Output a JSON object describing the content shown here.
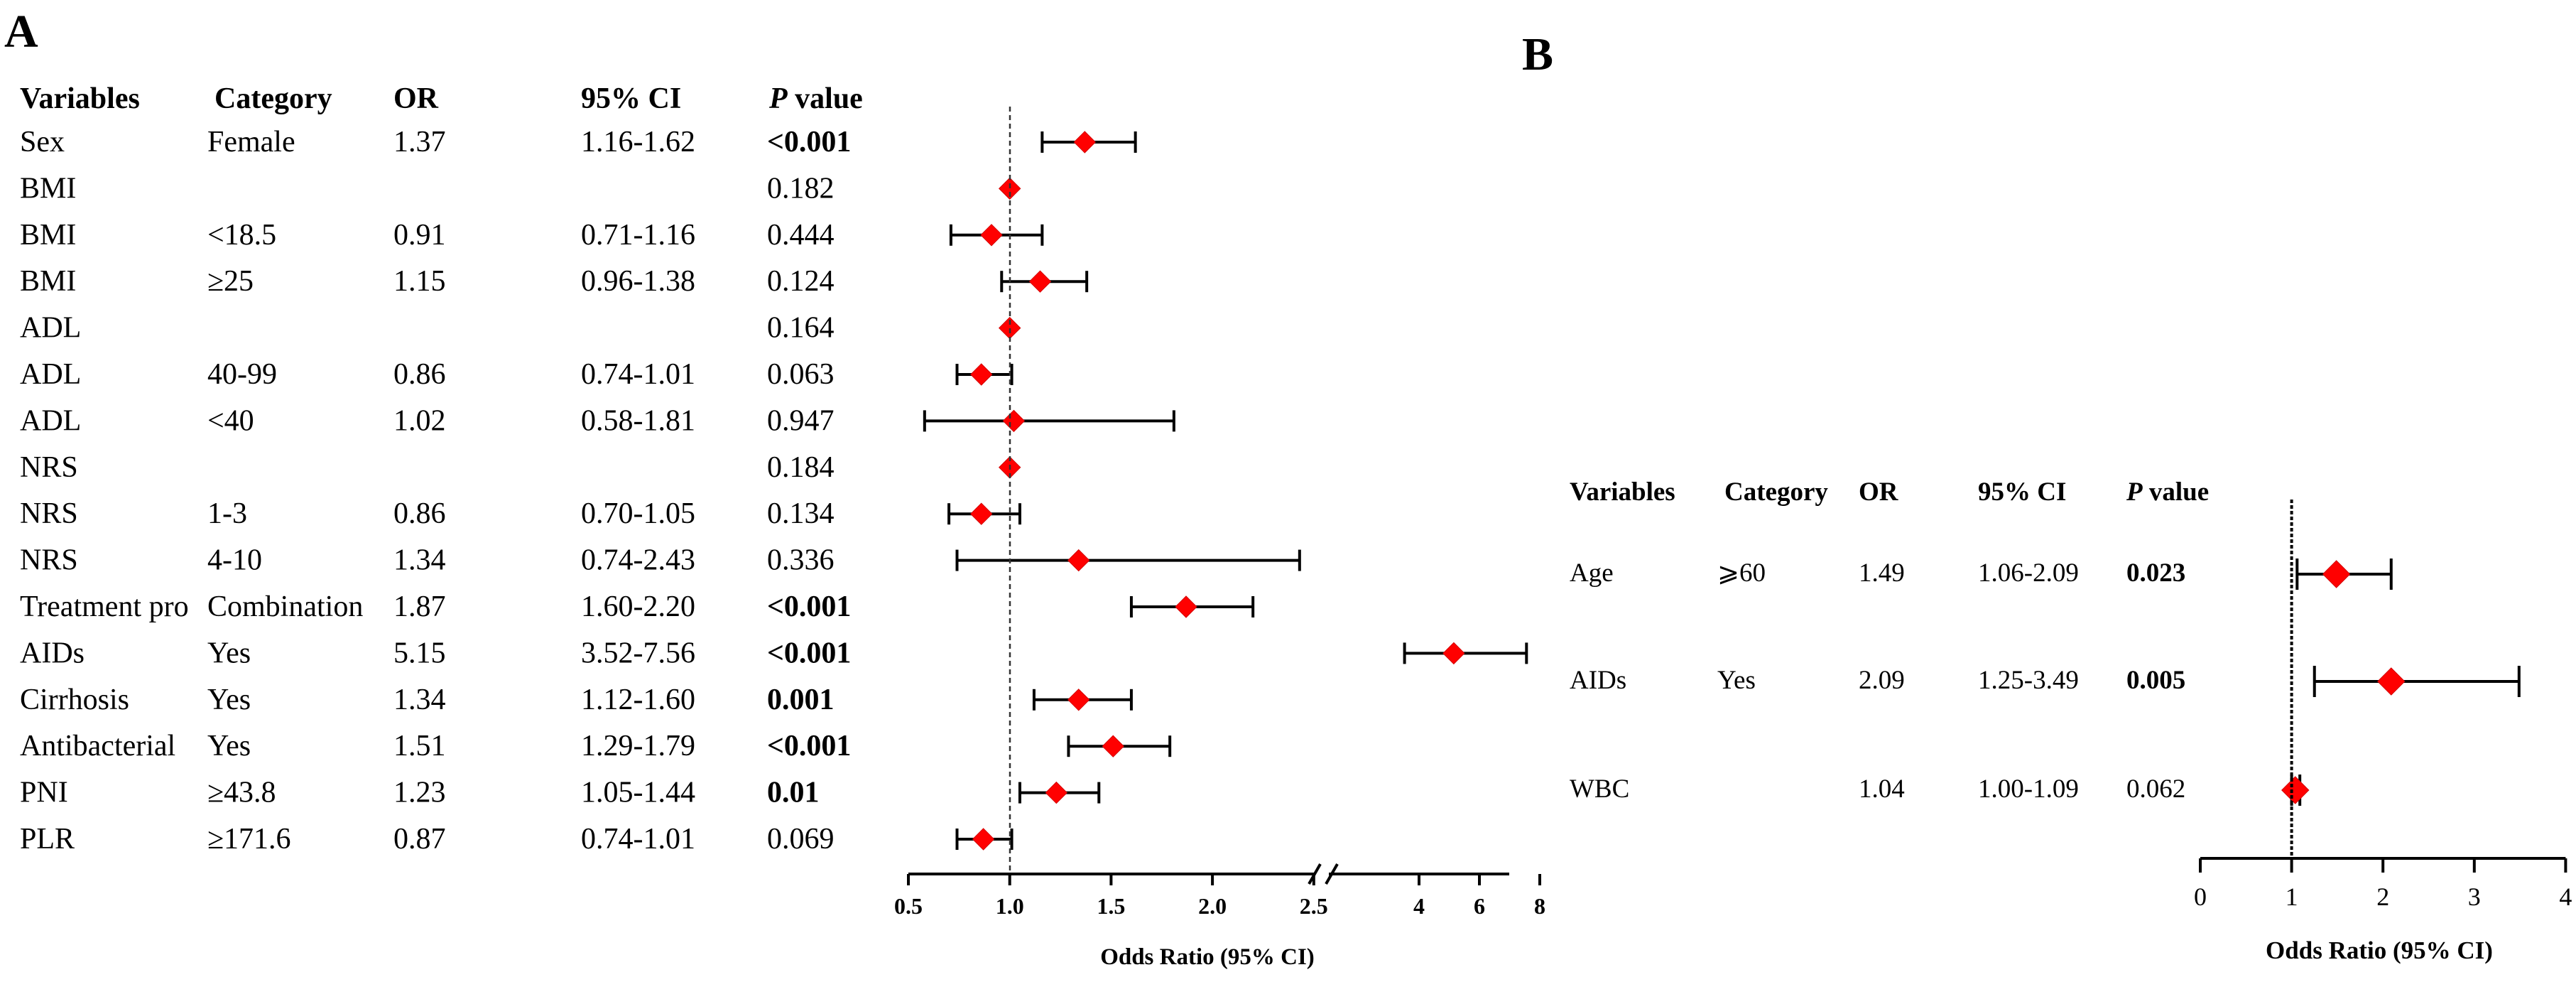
{
  "chart_data": [
    {
      "panel": "A",
      "type": "forest",
      "xlabel": "Odds Ratio (95% CI)",
      "reference": 1.0,
      "axis_break": [
        2.5,
        3.5
      ],
      "ticks_low": [
        "0.5",
        "1.0",
        "1.5",
        "2.0",
        "2.5"
      ],
      "ticks_high": [
        "4",
        "6",
        "8"
      ],
      "headers": {
        "variables": "Variables",
        "category": "Category",
        "or": "OR",
        "ci": "95% CI",
        "p_italic": "P",
        "p_rest": " value"
      },
      "rows": [
        {
          "variable": "Sex",
          "category": "Female",
          "or": "1.37",
          "ci": "1.16-1.62",
          "p": "<0.001",
          "bold": true,
          "est": 1.37,
          "lo": 1.16,
          "hi": 1.62
        },
        {
          "variable": "BMI",
          "category": "",
          "or": "",
          "ci": "",
          "p": "0.182",
          "bold": false,
          "est": 1.0,
          "lo": null,
          "hi": null
        },
        {
          "variable": "BMI",
          "category": "<18.5",
          "or": "0.91",
          "ci": "0.71-1.16",
          "p": "0.444",
          "bold": false,
          "est": 0.91,
          "lo": 0.71,
          "hi": 1.16
        },
        {
          "variable": "BMI",
          "category": "≥25",
          "or": "1.15",
          "ci": "0.96-1.38",
          "p": "0.124",
          "bold": false,
          "est": 1.15,
          "lo": 0.96,
          "hi": 1.38
        },
        {
          "variable": "ADL",
          "category": "",
          "or": "",
          "ci": "",
          "p": "0.164",
          "bold": false,
          "est": 1.0,
          "lo": null,
          "hi": null
        },
        {
          "variable": "ADL",
          "category": "40-99",
          "or": "0.86",
          "ci": "0.74-1.01",
          "p": "0.063",
          "bold": false,
          "est": 0.86,
          "lo": 0.74,
          "hi": 1.01
        },
        {
          "variable": "ADL",
          "category": "<40",
          "or": "1.02",
          "ci": "0.58-1.81",
          "p": "0.947",
          "bold": false,
          "est": 1.02,
          "lo": 0.58,
          "hi": 1.81
        },
        {
          "variable": "NRS",
          "category": "",
          "or": "",
          "ci": "",
          "p": "0.184",
          "bold": false,
          "est": 1.0,
          "lo": null,
          "hi": null
        },
        {
          "variable": "NRS",
          "category": "1-3",
          "or": "0.86",
          "ci": "0.70-1.05",
          "p": "0.134",
          "bold": false,
          "est": 0.86,
          "lo": 0.7,
          "hi": 1.05
        },
        {
          "variable": "NRS",
          "category": "4-10",
          "or": "1.34",
          "ci": "0.74-2.43",
          "p": "0.336",
          "bold": false,
          "est": 1.34,
          "lo": 0.74,
          "hi": 2.43
        },
        {
          "variable": "Treatment pro",
          "category": "Combination",
          "or": "1.87",
          "ci": "1.60-2.20",
          "p": "<0.001",
          "bold": true,
          "est": 1.87,
          "lo": 1.6,
          "hi": 2.2
        },
        {
          "variable": "AIDs",
          "category": "Yes",
          "or": "5.15",
          "ci": "3.52-7.56",
          "p": "<0.001",
          "bold": true,
          "est": 5.15,
          "lo": 3.52,
          "hi": 7.56
        },
        {
          "variable": "Cirrhosis",
          "category": "Yes",
          "or": "1.34",
          "ci": "1.12-1.60",
          "p": "0.001",
          "bold": true,
          "est": 1.34,
          "lo": 1.12,
          "hi": 1.6
        },
        {
          "variable": "Antibacterial",
          "category": "Yes",
          "or": "1.51",
          "ci": "1.29-1.79",
          "p": "<0.001",
          "bold": true,
          "est": 1.51,
          "lo": 1.29,
          "hi": 1.79
        },
        {
          "variable": "PNI",
          "category": "≥43.8",
          "or": "1.23",
          "ci": "1.05-1.44",
          "p": "0.01",
          "bold": true,
          "est": 1.23,
          "lo": 1.05,
          "hi": 1.44
        },
        {
          "variable": "PLR",
          "category": "≥171.6",
          "or": "0.87",
          "ci": "0.74-1.01",
          "p": "0.069",
          "bold": false,
          "est": 0.87,
          "lo": 0.74,
          "hi": 1.01
        }
      ]
    },
    {
      "panel": "B",
      "type": "forest",
      "xlabel": "Odds Ratio (95% CI)",
      "reference": 1.0,
      "xlim": [
        0,
        4
      ],
      "ticks": [
        "0",
        "1",
        "2",
        "3",
        "4"
      ],
      "headers": {
        "variables": "Variables",
        "category": "Category",
        "or": "OR",
        "ci": "95% CI",
        "p_italic": "P",
        "p_rest": " value"
      },
      "rows": [
        {
          "variable": "Age",
          "category": "⩾60",
          "or": "1.49",
          "ci": "1.06-2.09",
          "p": "0.023",
          "bold": true,
          "est": 1.49,
          "lo": 1.06,
          "hi": 2.09
        },
        {
          "variable": "AIDs",
          "category": "Yes",
          "or": "2.09",
          "ci": "1.25-3.49",
          "p": "0.005",
          "bold": true,
          "est": 2.09,
          "lo": 1.25,
          "hi": 3.49
        },
        {
          "variable": "WBC",
          "category": "",
          "or": "1.04",
          "ci": "1.00-1.09",
          "p": "0.062",
          "bold": false,
          "est": 1.04,
          "lo": 1.0,
          "hi": 1.09
        }
      ]
    }
  ]
}
